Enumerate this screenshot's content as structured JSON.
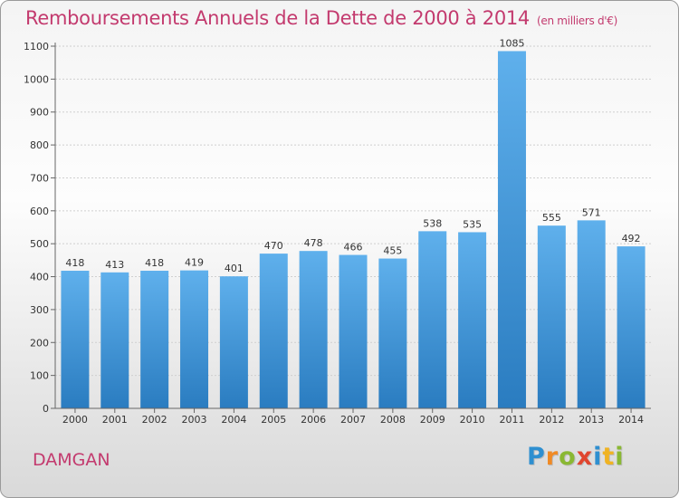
{
  "chart_data": {
    "type": "bar",
    "title": "Remboursements Annuels de la Dette de 2000 à 2014",
    "unit_label": "(en milliers d'€)",
    "categories": [
      "2000",
      "2001",
      "2002",
      "2003",
      "2004",
      "2005",
      "2006",
      "2007",
      "2008",
      "2009",
      "2010",
      "2011",
      "2012",
      "2013",
      "2014"
    ],
    "values": [
      418,
      413,
      418,
      419,
      401,
      470,
      478,
      466,
      455,
      538,
      535,
      1085,
      555,
      571,
      492
    ],
    "ylim": [
      0,
      1100
    ],
    "yticks": [
      0,
      100,
      200,
      300,
      400,
      500,
      600,
      700,
      800,
      900,
      1000,
      1100
    ],
    "grid": true,
    "bar_color": "#4a9fde"
  },
  "footer": {
    "place": "DAMGAN"
  },
  "logo": {
    "letters": [
      {
        "ch": "P",
        "color": "#2e8fd0"
      },
      {
        "ch": "r",
        "color": "#f08a24"
      },
      {
        "ch": "o",
        "color": "#8ab833"
      },
      {
        "ch": "x",
        "color": "#e0452e"
      },
      {
        "ch": "i",
        "color": "#2e8fd0"
      },
      {
        "ch": "t",
        "color": "#f0b323"
      },
      {
        "ch": "i",
        "color": "#8ab833"
      }
    ]
  }
}
